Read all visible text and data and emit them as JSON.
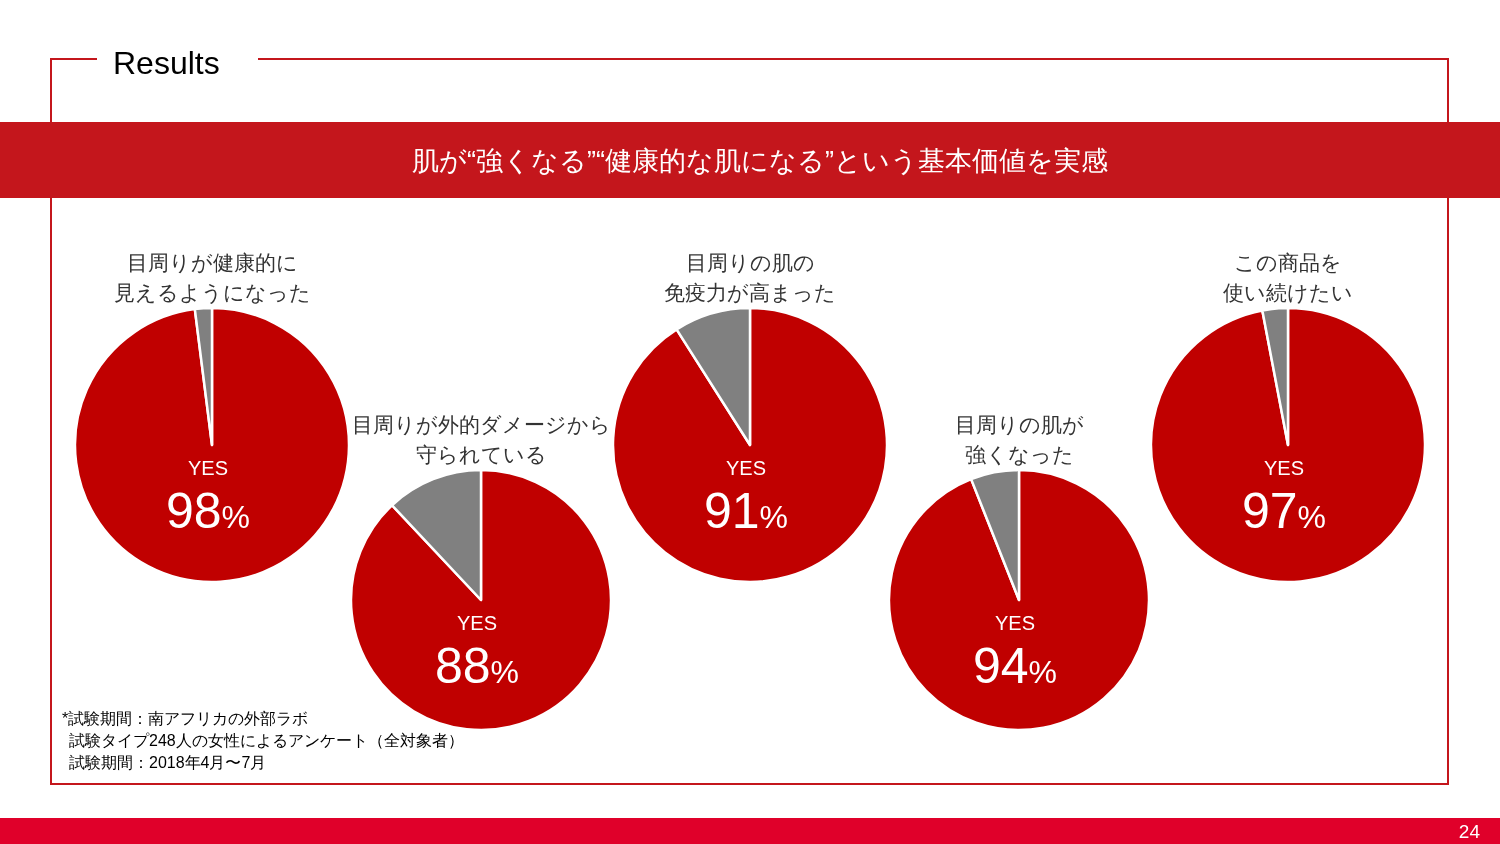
{
  "chart_data": [
    {
      "type": "other",
      "title": "Results",
      "subtitle": "肌が“強くなる”“健康的な肌になる”という基本価値を実感",
      "annotations": [
        "*試験期間：南アフリカの外部ラボ",
        "試験タイプ248人の女性によるアンケート（全対象者）",
        "試験期間：2018年4月〜7月",
        "24"
      ]
    },
    {
      "type": "pie",
      "title": "目周りが健康的に見えるようになった",
      "categories": [
        "YES",
        null
      ],
      "values": [
        98,
        2
      ],
      "colors": [
        "#c00000",
        "#808080"
      ],
      "value_labels": [
        "98%",
        null
      ]
    },
    {
      "type": "pie",
      "title": "目周りが外的ダメージから守られている",
      "categories": [
        "YES",
        null
      ],
      "values": [
        88,
        12
      ],
      "colors": [
        "#c00000",
        "#808080"
      ],
      "value_labels": [
        "88%",
        null
      ]
    },
    {
      "type": "pie",
      "title": "目周りの肌の免疫力が高まった",
      "categories": [
        "YES",
        null
      ],
      "values": [
        91,
        9
      ],
      "colors": [
        "#c00000",
        "#808080"
      ],
      "value_labels": [
        "91%",
        null
      ]
    },
    {
      "type": "pie",
      "title": "目周りの肌が強くなった",
      "categories": [
        "YES",
        null
      ],
      "values": [
        94,
        6
      ],
      "colors": [
        "#c00000",
        "#808080"
      ],
      "value_labels": [
        "94%",
        null
      ]
    },
    {
      "type": "pie",
      "title": "この商品を使い続けたい",
      "categories": [
        "YES",
        null
      ],
      "values": [
        97,
        3
      ],
      "colors": [
        "#c00000",
        "#808080"
      ],
      "value_labels": [
        "97%",
        null
      ]
    }
  ]
}
